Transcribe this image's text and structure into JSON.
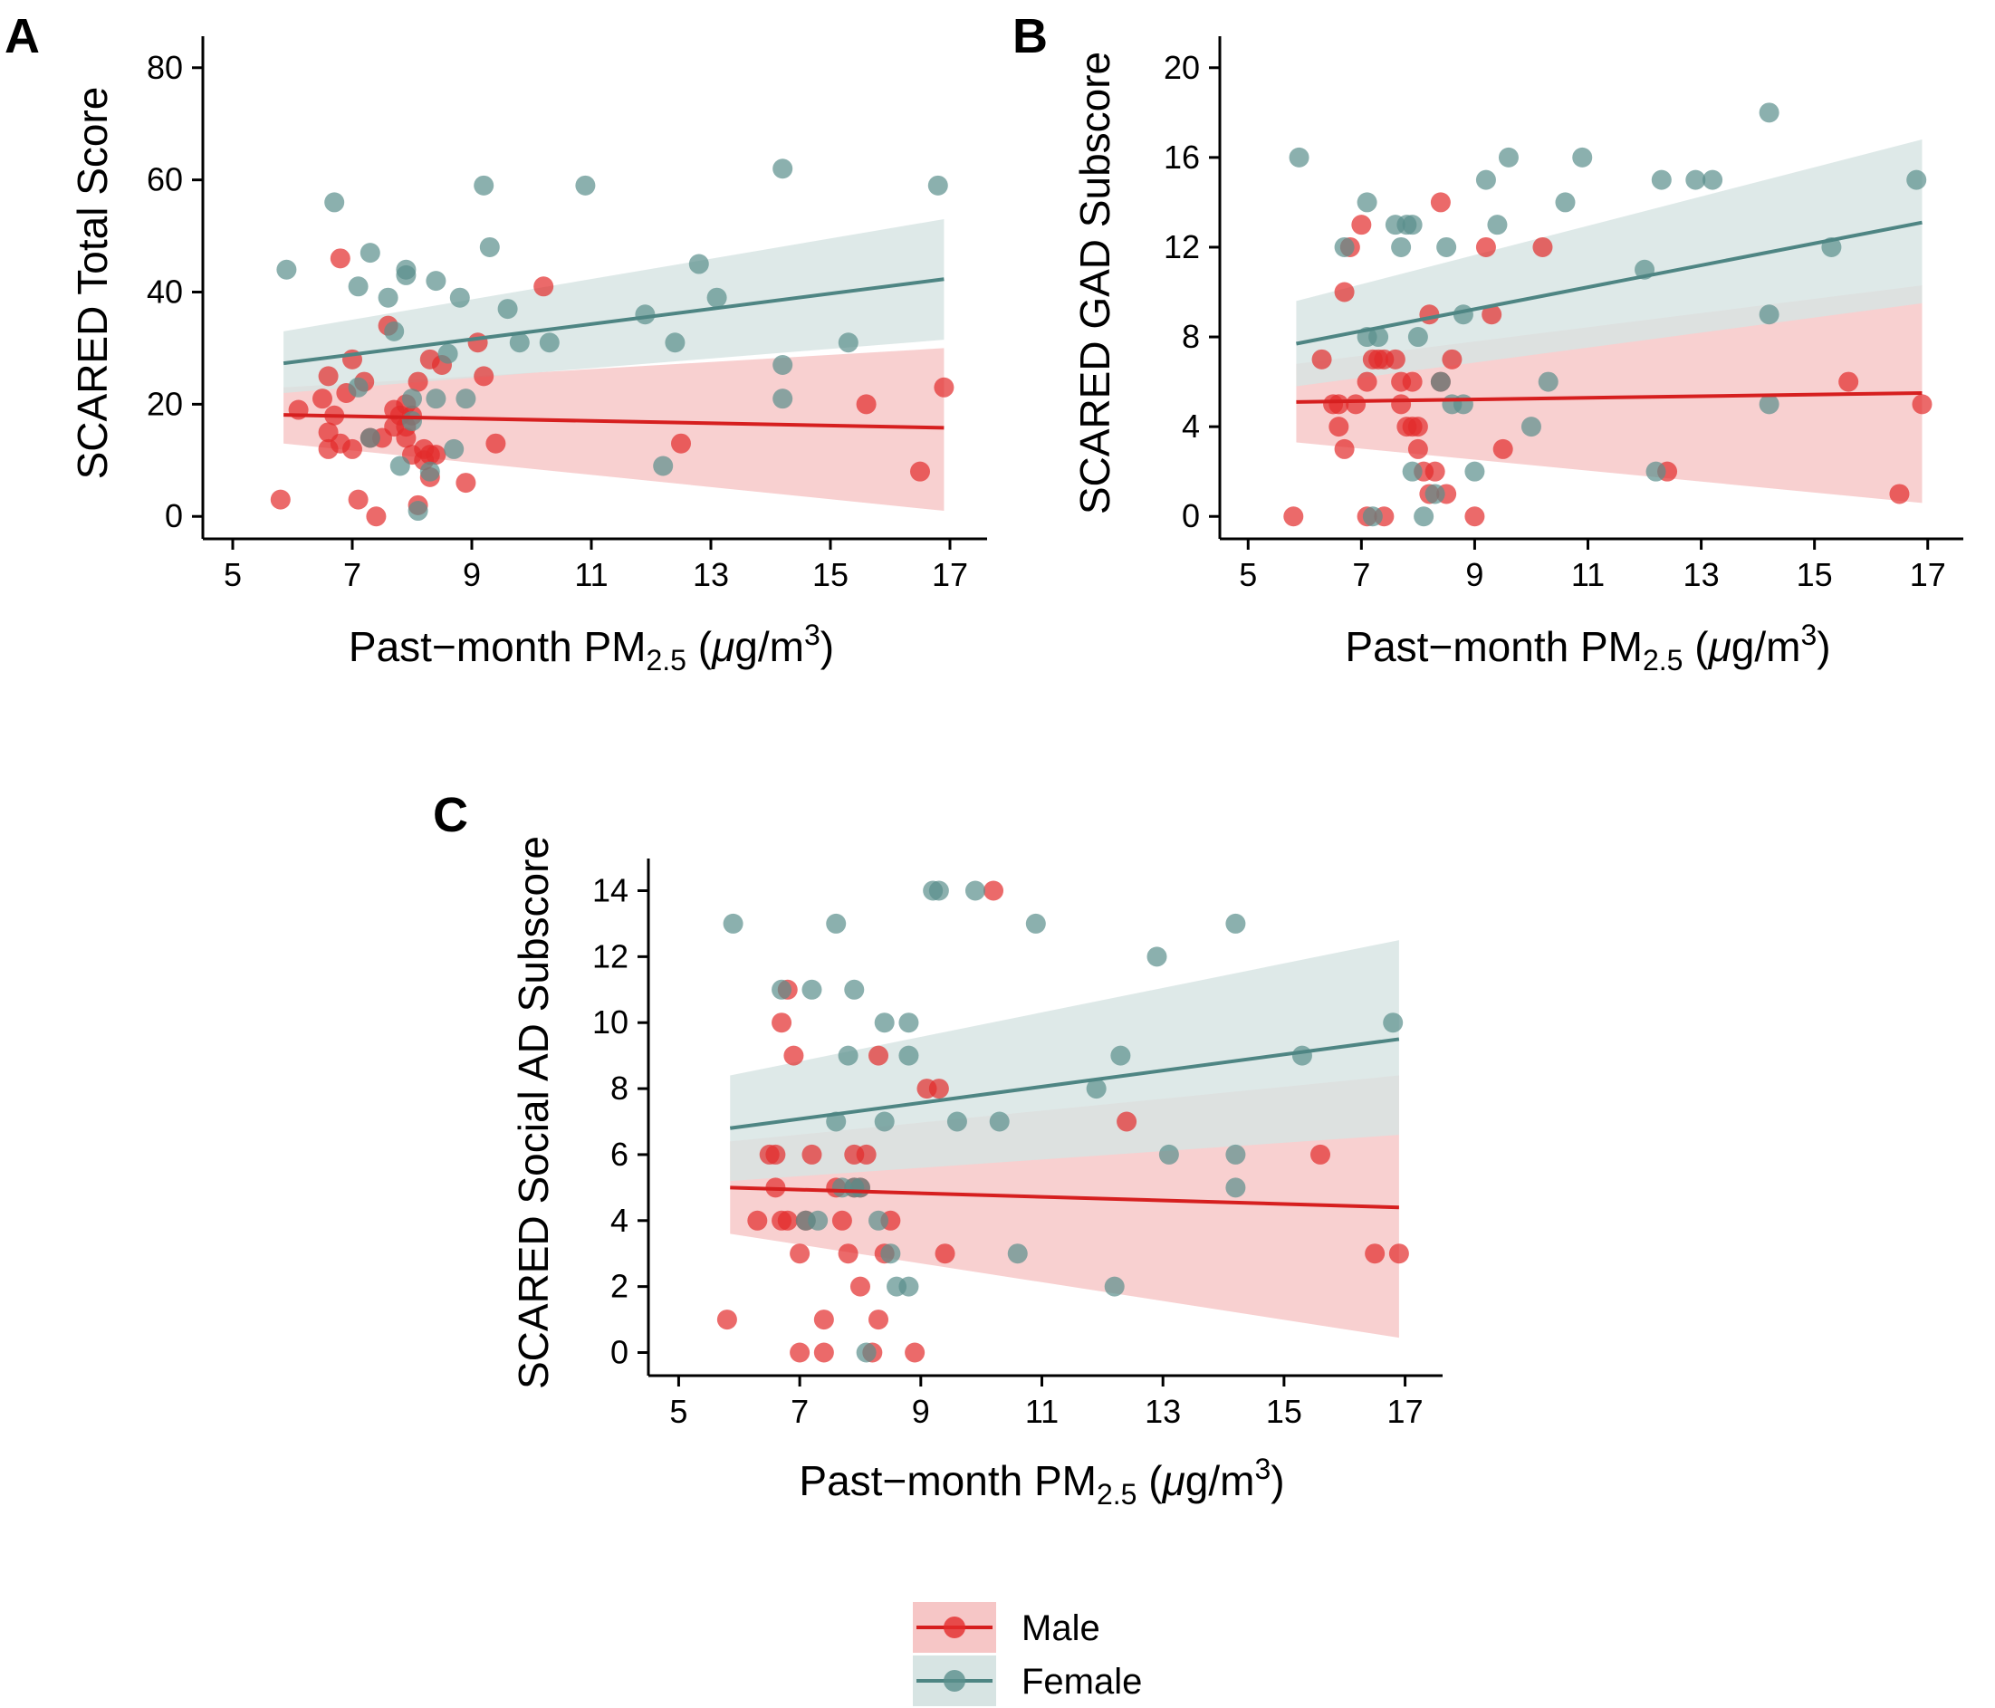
{
  "colors": {
    "male": "#e32b2b",
    "female": "#5a8f8c",
    "male_band": "#f6c6c6",
    "female_band": "#d7e4e3",
    "male_line": "#d61f1f",
    "female_line": "#4e8583"
  },
  "legend": {
    "items": [
      {
        "key": "male",
        "label": "Male"
      },
      {
        "key": "female",
        "label": "Female"
      }
    ]
  },
  "chart_data": [
    {
      "id": "A",
      "type": "scatter",
      "panel_label": "A",
      "title": "",
      "xlabel_main": "Past−month PM",
      "xlabel_sub": "2.5",
      "xlabel_unit_open": " (",
      "xlabel_mu": "μ",
      "xlabel_unit": "g/m",
      "xlabel_sup": "3",
      "xlabel_unit_close": ")",
      "ylabel": "SCARED Total Score",
      "xlim": [
        4.5,
        17.5
      ],
      "ylim": [
        -4,
        84
      ],
      "xticks": [
        5,
        7,
        9,
        11,
        13,
        15,
        17
      ],
      "yticks": [
        0,
        20,
        40,
        60,
        80
      ],
      "series": [
        {
          "name": "Male",
          "points": [
            [
              5.8,
              3
            ],
            [
              6.1,
              19
            ],
            [
              6.5,
              21
            ],
            [
              6.6,
              25
            ],
            [
              6.6,
              15
            ],
            [
              6.6,
              12
            ],
            [
              6.7,
              18
            ],
            [
              6.8,
              46
            ],
            [
              6.8,
              13
            ],
            [
              6.9,
              22
            ],
            [
              7.0,
              28
            ],
            [
              7.0,
              12
            ],
            [
              7.1,
              3
            ],
            [
              7.2,
              24
            ],
            [
              7.3,
              14
            ],
            [
              7.4,
              0
            ],
            [
              7.5,
              14
            ],
            [
              7.6,
              34
            ],
            [
              7.7,
              19
            ],
            [
              7.7,
              16
            ],
            [
              7.8,
              18
            ],
            [
              7.9,
              16
            ],
            [
              7.9,
              14
            ],
            [
              7.9,
              20
            ],
            [
              8.0,
              11
            ],
            [
              8.0,
              18
            ],
            [
              8.1,
              24
            ],
            [
              8.1,
              2
            ],
            [
              8.2,
              12
            ],
            [
              8.2,
              10
            ],
            [
              8.3,
              28
            ],
            [
              8.3,
              11
            ],
            [
              8.3,
              7
            ],
            [
              8.4,
              11
            ],
            [
              8.5,
              27
            ],
            [
              8.9,
              6
            ],
            [
              9.1,
              31
            ],
            [
              9.2,
              25
            ],
            [
              9.4,
              13
            ],
            [
              10.2,
              41
            ],
            [
              12.5,
              13
            ],
            [
              15.6,
              20
            ],
            [
              16.5,
              8
            ],
            [
              16.9,
              23
            ]
          ],
          "fit": [
            18.1,
            15.8
          ],
          "band_low": [
            13,
            1
          ],
          "band_high": [
            23,
            30
          ]
        },
        {
          "name": "Female",
          "points": [
            [
              5.9,
              44
            ],
            [
              6.7,
              56
            ],
            [
              7.1,
              41
            ],
            [
              7.1,
              23
            ],
            [
              7.3,
              14
            ],
            [
              7.3,
              47
            ],
            [
              7.6,
              39
            ],
            [
              7.7,
              33
            ],
            [
              7.8,
              9
            ],
            [
              7.9,
              43
            ],
            [
              7.9,
              44
            ],
            [
              8.0,
              21
            ],
            [
              8.0,
              17
            ],
            [
              8.1,
              1
            ],
            [
              8.3,
              8
            ],
            [
              8.4,
              42
            ],
            [
              8.4,
              21
            ],
            [
              8.6,
              29
            ],
            [
              8.7,
              12
            ],
            [
              8.8,
              39
            ],
            [
              8.9,
              21
            ],
            [
              9.2,
              59
            ],
            [
              9.3,
              48
            ],
            [
              9.6,
              37
            ],
            [
              9.8,
              31
            ],
            [
              10.3,
              31
            ],
            [
              10.9,
              59
            ],
            [
              11.9,
              36
            ],
            [
              12.2,
              9
            ],
            [
              12.4,
              31
            ],
            [
              12.8,
              45
            ],
            [
              13.1,
              39
            ],
            [
              14.2,
              62
            ],
            [
              14.2,
              27
            ],
            [
              14.2,
              21
            ],
            [
              15.3,
              31
            ],
            [
              16.8,
              59
            ]
          ],
          "fit": [
            27.3,
            42.3
          ],
          "band_low": [
            22,
            31.5
          ],
          "band_high": [
            33,
            53
          ]
        }
      ]
    },
    {
      "id": "B",
      "type": "scatter",
      "panel_label": "B",
      "title": "",
      "xlabel_main": "Past−month PM",
      "xlabel_sub": "2.5",
      "xlabel_unit_open": " (",
      "xlabel_mu": "μ",
      "xlabel_unit": "g/m",
      "xlabel_sup": "3",
      "xlabel_unit_close": ")",
      "ylabel": "SCARED GAD Subscore",
      "xlim": [
        4.5,
        17.5
      ],
      "ylim": [
        -1,
        21
      ],
      "xticks": [
        5,
        7,
        9,
        11,
        13,
        15,
        17
      ],
      "yticks": [
        0,
        4,
        8,
        12,
        16,
        20
      ],
      "series": [
        {
          "name": "Male",
          "points": [
            [
              5.8,
              0
            ],
            [
              6.3,
              7
            ],
            [
              6.5,
              5
            ],
            [
              6.6,
              4
            ],
            [
              6.6,
              5
            ],
            [
              6.7,
              10
            ],
            [
              6.7,
              3
            ],
            [
              6.8,
              12
            ],
            [
              6.9,
              5
            ],
            [
              7.0,
              13
            ],
            [
              7.1,
              0
            ],
            [
              7.1,
              6
            ],
            [
              7.2,
              7
            ],
            [
              7.3,
              7
            ],
            [
              7.4,
              0
            ],
            [
              7.4,
              7
            ],
            [
              7.6,
              7
            ],
            [
              7.7,
              6
            ],
            [
              7.7,
              5
            ],
            [
              7.8,
              4
            ],
            [
              7.9,
              4
            ],
            [
              7.9,
              6
            ],
            [
              8.0,
              3
            ],
            [
              8.0,
              4
            ],
            [
              8.1,
              2
            ],
            [
              8.2,
              9
            ],
            [
              8.2,
              1
            ],
            [
              8.3,
              2
            ],
            [
              8.4,
              14
            ],
            [
              8.4,
              6
            ],
            [
              8.5,
              1
            ],
            [
              8.6,
              7
            ],
            [
              9.0,
              0
            ],
            [
              9.2,
              12
            ],
            [
              9.3,
              9
            ],
            [
              9.5,
              3
            ],
            [
              10.2,
              12
            ],
            [
              12.4,
              2
            ],
            [
              15.6,
              6
            ],
            [
              16.5,
              1
            ],
            [
              16.9,
              5
            ]
          ],
          "fit": [
            5.1,
            5.5
          ],
          "band_low": [
            3.3,
            0.6
          ],
          "band_high": [
            6.8,
            10.3
          ]
        },
        {
          "name": "Female",
          "points": [
            [
              5.9,
              16
            ],
            [
              6.7,
              12
            ],
            [
              7.1,
              8
            ],
            [
              7.1,
              14
            ],
            [
              7.2,
              0
            ],
            [
              7.3,
              8
            ],
            [
              7.6,
              13
            ],
            [
              7.7,
              12
            ],
            [
              7.8,
              13
            ],
            [
              7.9,
              13
            ],
            [
              7.9,
              2
            ],
            [
              8.0,
              8
            ],
            [
              8.1,
              0
            ],
            [
              8.3,
              1
            ],
            [
              8.4,
              6
            ],
            [
              8.5,
              12
            ],
            [
              8.6,
              5
            ],
            [
              8.8,
              9
            ],
            [
              8.8,
              5
            ],
            [
              9.0,
              2
            ],
            [
              9.2,
              15
            ],
            [
              9.4,
              13
            ],
            [
              9.6,
              16
            ],
            [
              10.0,
              4
            ],
            [
              10.3,
              6
            ],
            [
              10.6,
              14
            ],
            [
              10.9,
              16
            ],
            [
              12.0,
              11
            ],
            [
              12.2,
              2
            ],
            [
              12.3,
              15
            ],
            [
              12.9,
              15
            ],
            [
              13.2,
              15
            ],
            [
              14.2,
              18
            ],
            [
              14.2,
              9
            ],
            [
              14.2,
              5
            ],
            [
              15.3,
              12
            ],
            [
              16.8,
              15
            ]
          ],
          "fit": [
            7.7,
            13.1
          ],
          "band_low": [
            5.8,
            9.5
          ],
          "band_high": [
            9.6,
            16.8
          ]
        }
      ]
    },
    {
      "id": "C",
      "type": "scatter",
      "panel_label": "C",
      "title": "",
      "xlabel_main": "Past−month PM",
      "xlabel_sub": "2.5",
      "xlabel_unit_open": " (",
      "xlabel_mu": "μ",
      "xlabel_unit": "g/m",
      "xlabel_sup": "3",
      "xlabel_unit_close": ")",
      "ylabel": "SCARED Social AD Subscore",
      "xlim": [
        4.5,
        17.5
      ],
      "ylim": [
        -0.7,
        14.7
      ],
      "xticks": [
        5,
        7,
        9,
        11,
        13,
        15,
        17
      ],
      "yticks": [
        0,
        2,
        4,
        6,
        8,
        10,
        12,
        14
      ],
      "series": [
        {
          "name": "Male",
          "points": [
            [
              5.8,
              1
            ],
            [
              6.3,
              4
            ],
            [
              6.5,
              6
            ],
            [
              6.6,
              6
            ],
            [
              6.6,
              5
            ],
            [
              6.7,
              4
            ],
            [
              6.7,
              10
            ],
            [
              6.8,
              11
            ],
            [
              6.8,
              4
            ],
            [
              6.9,
              9
            ],
            [
              7.0,
              3
            ],
            [
              7.0,
              0
            ],
            [
              7.1,
              4
            ],
            [
              7.2,
              6
            ],
            [
              7.4,
              0
            ],
            [
              7.4,
              1
            ],
            [
              7.6,
              5
            ],
            [
              7.7,
              4
            ],
            [
              7.8,
              3
            ],
            [
              7.9,
              5
            ],
            [
              7.9,
              6
            ],
            [
              8.0,
              2
            ],
            [
              8.0,
              5
            ],
            [
              8.1,
              6
            ],
            [
              8.2,
              0
            ],
            [
              8.3,
              1
            ],
            [
              8.3,
              9
            ],
            [
              8.4,
              3
            ],
            [
              8.5,
              4
            ],
            [
              8.9,
              0
            ],
            [
              9.1,
              8
            ],
            [
              9.3,
              8
            ],
            [
              9.4,
              3
            ],
            [
              10.2,
              14
            ],
            [
              12.4,
              7
            ],
            [
              15.6,
              6
            ],
            [
              16.5,
              3
            ],
            [
              16.9,
              3
            ]
          ],
          "fit": [
            5.0,
            4.4
          ],
          "band_low": [
            3.6,
            0.45
          ],
          "band_high": [
            6.4,
            8.4
          ]
        },
        {
          "name": "Female",
          "points": [
            [
              5.9,
              13
            ],
            [
              6.7,
              11
            ],
            [
              7.1,
              4
            ],
            [
              7.2,
              11
            ],
            [
              7.3,
              4
            ],
            [
              7.6,
              7
            ],
            [
              7.6,
              13
            ],
            [
              7.7,
              5
            ],
            [
              7.8,
              9
            ],
            [
              7.9,
              11
            ],
            [
              7.9,
              5
            ],
            [
              8.0,
              5
            ],
            [
              8.1,
              0
            ],
            [
              8.3,
              4
            ],
            [
              8.4,
              10
            ],
            [
              8.4,
              7
            ],
            [
              8.5,
              3
            ],
            [
              8.6,
              2
            ],
            [
              8.8,
              10
            ],
            [
              8.8,
              9
            ],
            [
              8.8,
              2
            ],
            [
              9.2,
              14
            ],
            [
              9.3,
              14
            ],
            [
              9.6,
              7
            ],
            [
              9.9,
              14
            ],
            [
              10.3,
              7
            ],
            [
              10.6,
              3
            ],
            [
              10.9,
              13
            ],
            [
              11.9,
              8
            ],
            [
              12.2,
              2
            ],
            [
              12.3,
              9
            ],
            [
              12.9,
              12
            ],
            [
              13.1,
              6
            ],
            [
              14.2,
              13
            ],
            [
              14.2,
              6
            ],
            [
              14.2,
              5
            ],
            [
              15.3,
              9
            ],
            [
              16.8,
              10
            ]
          ],
          "fit": [
            6.8,
            9.5
          ],
          "band_low": [
            5.2,
            6.6
          ],
          "band_high": [
            8.4,
            12.5
          ]
        }
      ]
    }
  ]
}
